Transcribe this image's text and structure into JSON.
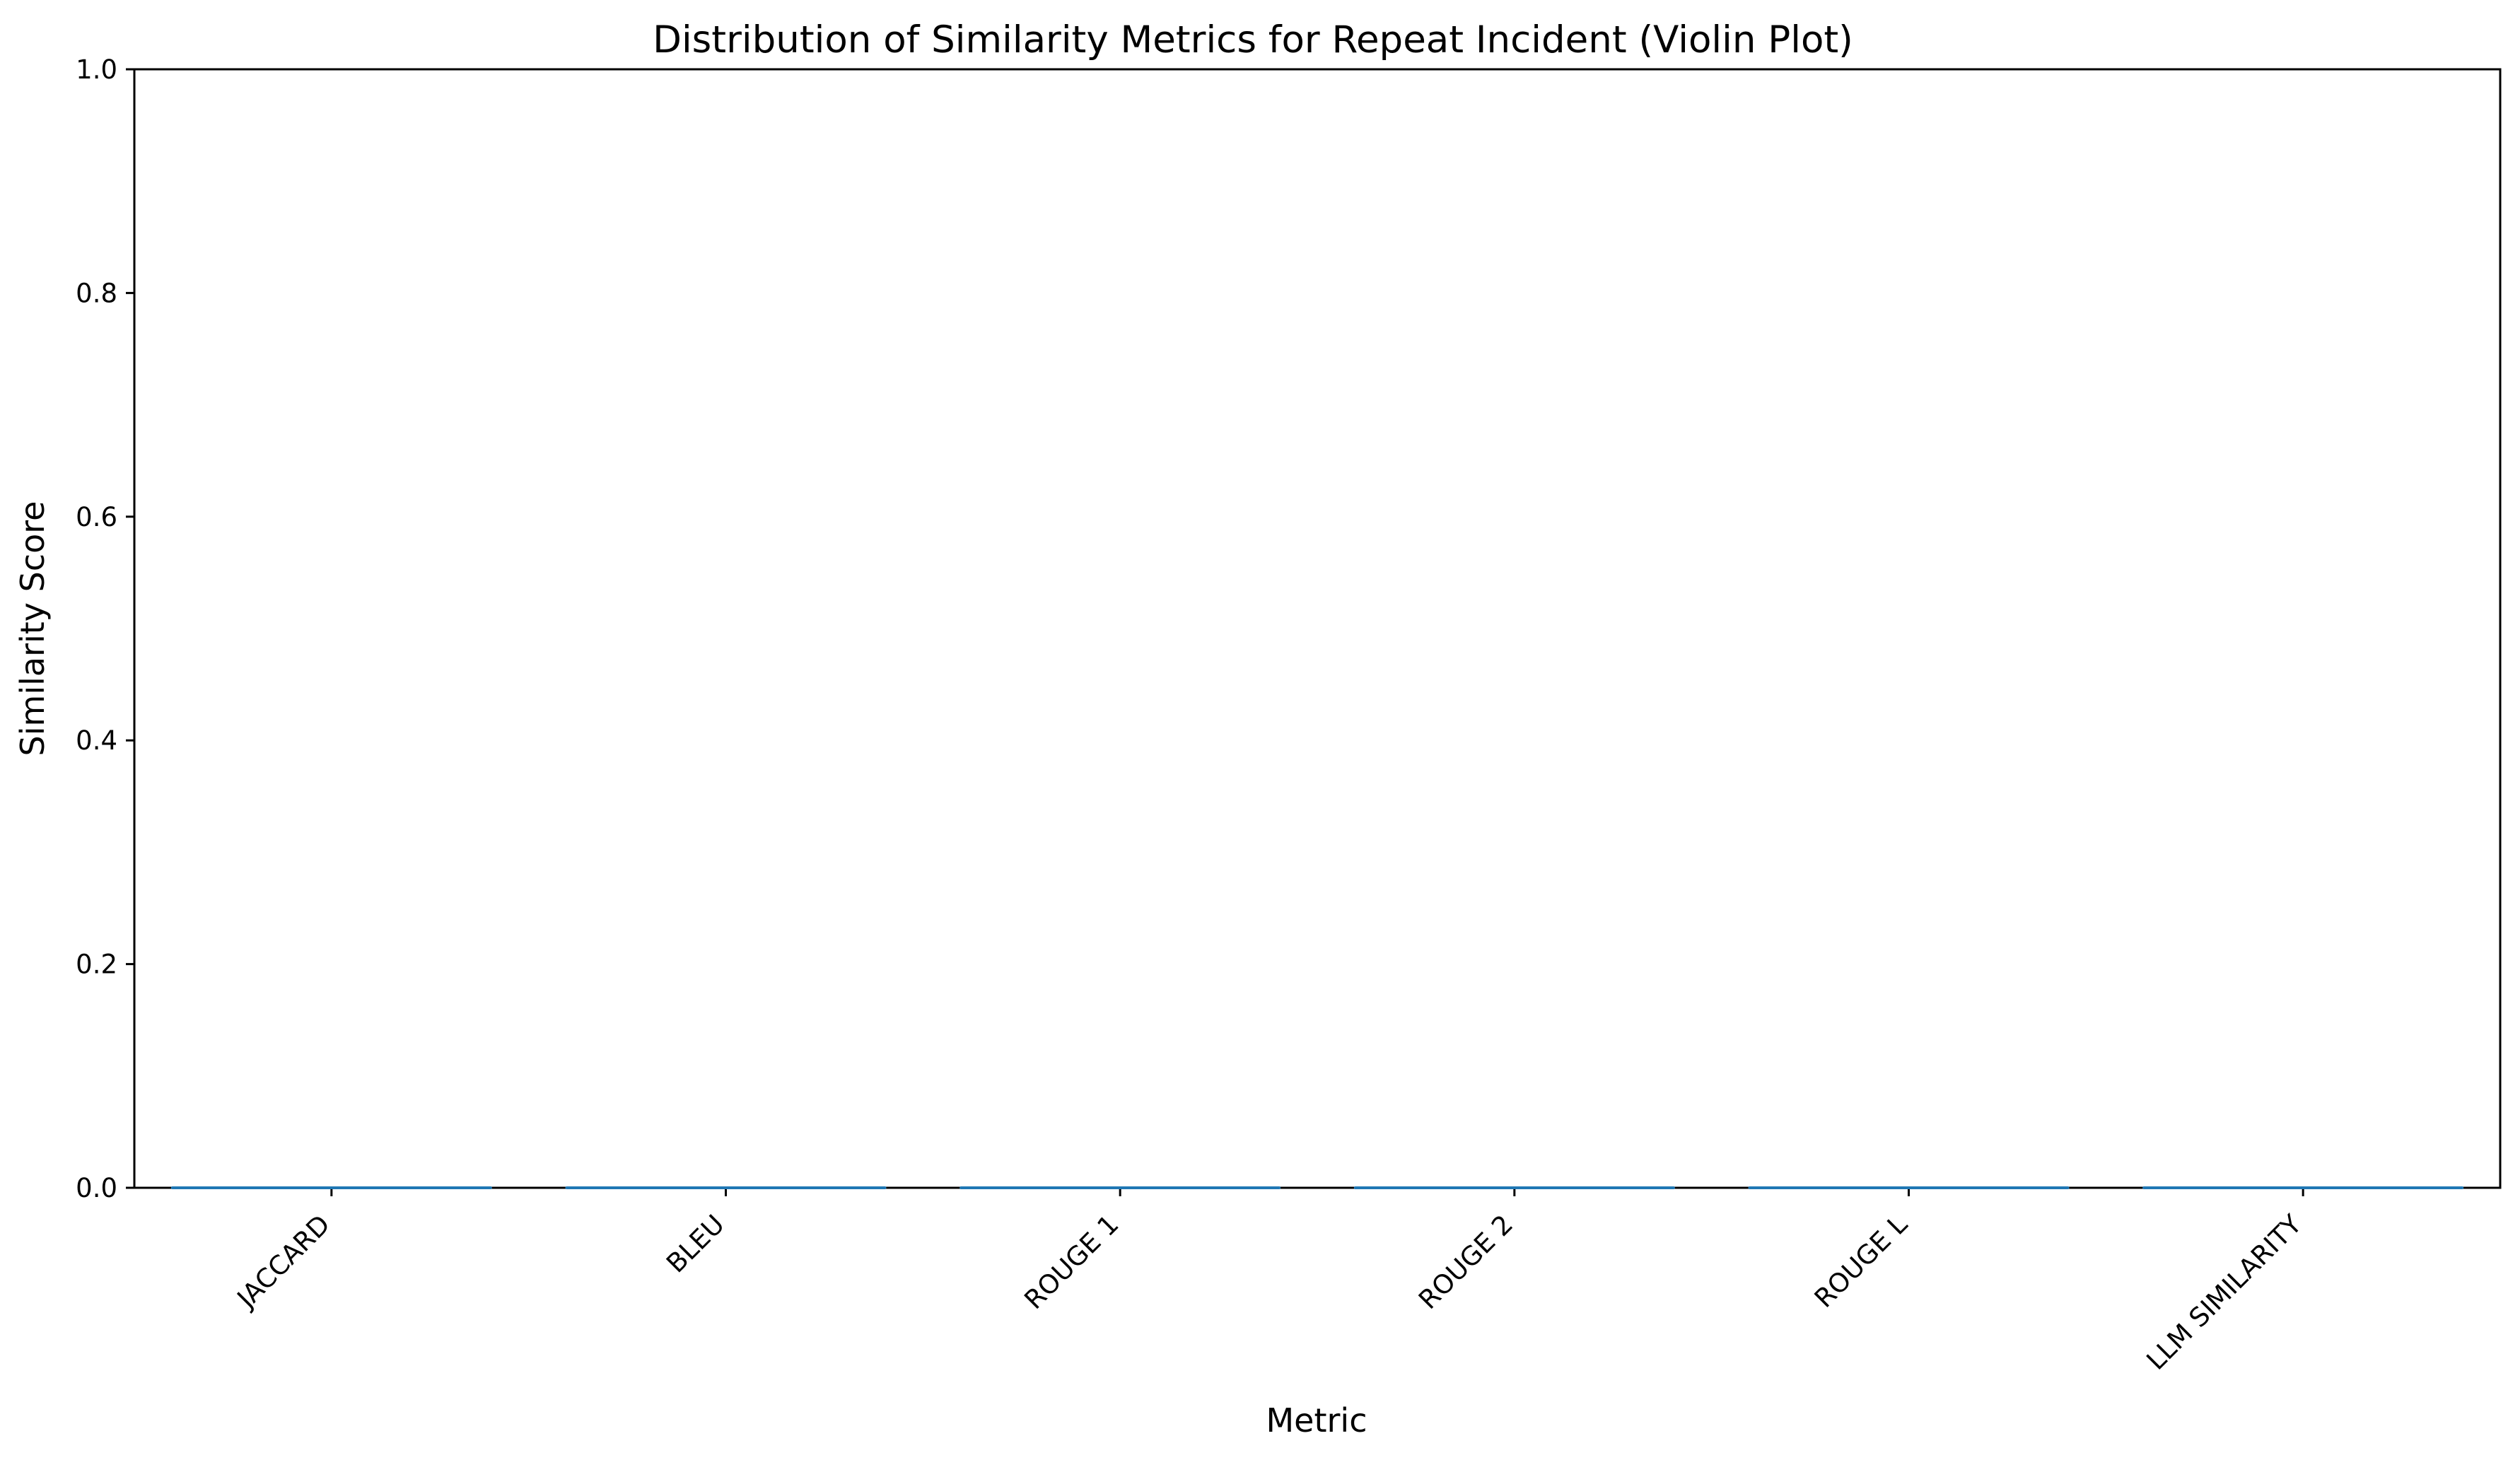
{
  "chart_data": {
    "type": "violin",
    "title": "Distribution of Similarity Metrics for Repeat Incident (Violin Plot)",
    "xlabel": "Metric",
    "ylabel": "Similarity Score",
    "categories": [
      "JACCARD",
      "BLEU",
      "ROUGE 1",
      "ROUGE 2",
      "ROUGE L",
      "LLM SIMILARITY"
    ],
    "values": [
      0,
      0,
      0,
      0,
      0,
      0
    ],
    "ylim": [
      0,
      1.0
    ],
    "yticks": [
      "0.0",
      "0.2",
      "0.4",
      "0.6",
      "0.8",
      "1.0"
    ],
    "grid": false,
    "colors": {
      "axis": "#000000",
      "violin": "#1f77b4"
    }
  }
}
